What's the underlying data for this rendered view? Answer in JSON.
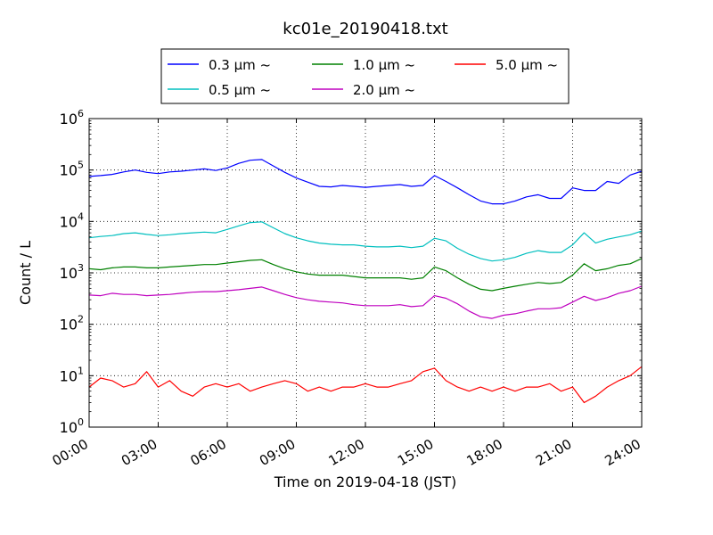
{
  "chart_data": {
    "type": "line",
    "title": "kc01e_20190418.txt",
    "xlabel": "Time on 2019-04-18 (JST)",
    "ylabel": "Count / L",
    "yscale": "log",
    "ylim": [
      1,
      1000000
    ],
    "xlim": [
      "00:00",
      "24:00"
    ],
    "x_unit": "hour",
    "x_ticks": [
      "00:00",
      "03:00",
      "06:00",
      "09:00",
      "12:00",
      "15:00",
      "18:00",
      "21:00",
      "24:00"
    ],
    "y_ticks": [
      {
        "base": "10",
        "exp": "0"
      },
      {
        "base": "10",
        "exp": "1"
      },
      {
        "base": "10",
        "exp": "2"
      },
      {
        "base": "10",
        "exp": "3"
      },
      {
        "base": "10",
        "exp": "4"
      },
      {
        "base": "10",
        "exp": "5"
      },
      {
        "base": "10",
        "exp": "6"
      }
    ],
    "grid": true,
    "legend_position": "top-center",
    "x": [
      0,
      0.5,
      1,
      1.5,
      2,
      2.5,
      3,
      3.5,
      4,
      4.5,
      5,
      5.5,
      6,
      6.5,
      7,
      7.5,
      8,
      8.5,
      9,
      9.5,
      10,
      10.5,
      11,
      11.5,
      12,
      12.5,
      13,
      13.5,
      14,
      14.5,
      15,
      15.5,
      16,
      16.5,
      17,
      17.5,
      18,
      18.5,
      19,
      19.5,
      20,
      20.5,
      21,
      21.5,
      22,
      22.5,
      23,
      23.5,
      24
    ],
    "series": [
      {
        "name": "0.3 μm ~",
        "color": "#0000ff",
        "values": [
          75000,
          78000,
          82000,
          92000,
          100000,
          90000,
          85000,
          92000,
          95000,
          100000,
          105000,
          98000,
          110000,
          135000,
          155000,
          160000,
          120000,
          90000,
          70000,
          58000,
          48000,
          47000,
          50000,
          48000,
          46000,
          48000,
          50000,
          52000,
          48000,
          50000,
          78000,
          60000,
          45000,
          33000,
          25000,
          22000,
          22000,
          25000,
          30000,
          33000,
          28000,
          28000,
          45000,
          40000,
          40000,
          60000,
          55000,
          80000,
          95000
        ]
      },
      {
        "name": "0.5 μm ~",
        "color": "#00bfbf",
        "values": [
          4800,
          5100,
          5300,
          5800,
          6000,
          5600,
          5300,
          5500,
          5800,
          6000,
          6200,
          6000,
          7000,
          8200,
          9500,
          9800,
          7500,
          5800,
          4800,
          4200,
          3800,
          3600,
          3500,
          3500,
          3300,
          3200,
          3200,
          3300,
          3100,
          3300,
          4700,
          4200,
          3000,
          2300,
          1900,
          1700,
          1800,
          2000,
          2400,
          2700,
          2500,
          2500,
          3500,
          6000,
          3800,
          4500,
          5000,
          5500,
          6500
        ]
      },
      {
        "name": "1.0 μm ~",
        "color": "#008000",
        "values": [
          1200,
          1150,
          1250,
          1300,
          1300,
          1250,
          1250,
          1300,
          1350,
          1400,
          1450,
          1450,
          1550,
          1650,
          1750,
          1800,
          1450,
          1200,
          1050,
          950,
          900,
          900,
          900,
          850,
          800,
          800,
          800,
          800,
          750,
          800,
          1300,
          1100,
          800,
          600,
          480,
          450,
          500,
          550,
          600,
          650,
          620,
          650,
          900,
          1500,
          1100,
          1200,
          1400,
          1500,
          1900
        ]
      },
      {
        "name": "2.0 μm ~",
        "color": "#bf00bf",
        "values": [
          370,
          360,
          400,
          380,
          380,
          360,
          370,
          380,
          400,
          420,
          430,
          430,
          450,
          470,
          500,
          530,
          450,
          380,
          330,
          300,
          280,
          270,
          260,
          240,
          230,
          230,
          230,
          240,
          220,
          230,
          360,
          320,
          250,
          180,
          140,
          130,
          150,
          160,
          180,
          200,
          200,
          210,
          270,
          350,
          290,
          330,
          400,
          450,
          550
        ]
      },
      {
        "name": "5.0 μm ~",
        "color": "#ff0000",
        "values": [
          6,
          9,
          8,
          6,
          7,
          12,
          6,
          8,
          5,
          4,
          6,
          7,
          6,
          7,
          5,
          6,
          7,
          8,
          7,
          5,
          6,
          5,
          6,
          6,
          7,
          6,
          6,
          7,
          8,
          12,
          14,
          8,
          6,
          5,
          6,
          5,
          6,
          5,
          6,
          6,
          7,
          5,
          6,
          3,
          4,
          6,
          8,
          10,
          15
        ]
      }
    ]
  }
}
